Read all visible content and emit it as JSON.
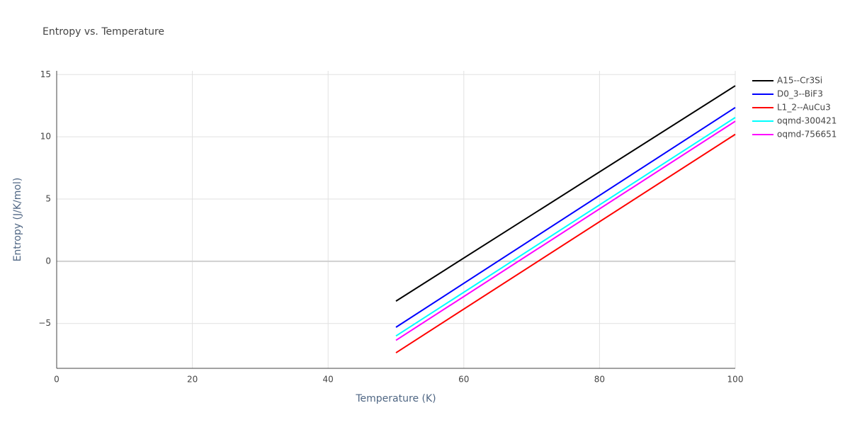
{
  "chart_data": {
    "type": "line",
    "title": "Entropy vs. Temperature",
    "x_label": "Temperature (K)",
    "y_label": "Entropy (J/K/mol)",
    "x": [
      50,
      100
    ],
    "series": [
      {
        "name": "A15--Cr3Si",
        "color": "#000000",
        "values": [
          -3.2,
          14.1
        ]
      },
      {
        "name": "D0_3--BiF3",
        "color": "#0000ff",
        "values": [
          -5.3,
          12.35
        ]
      },
      {
        "name": "L1_2--AuCu3",
        "color": "#ff0000",
        "values": [
          -7.35,
          10.2
        ]
      },
      {
        "name": "oqmd-300421",
        "color": "#00ffff",
        "values": [
          -6.0,
          11.55
        ]
      },
      {
        "name": "oqmd-756651",
        "color": "#ff00ff",
        "values": [
          -6.35,
          11.25
        ]
      }
    ],
    "xlim": [
      0,
      100
    ],
    "xticks": [
      0,
      20,
      40,
      60,
      80,
      100
    ],
    "ylim": [
      -8.6,
      15.3
    ],
    "yticks": [
      {
        "value": -5,
        "label": "−5"
      },
      0,
      5,
      10,
      15
    ],
    "grid": true,
    "legend": "right"
  }
}
